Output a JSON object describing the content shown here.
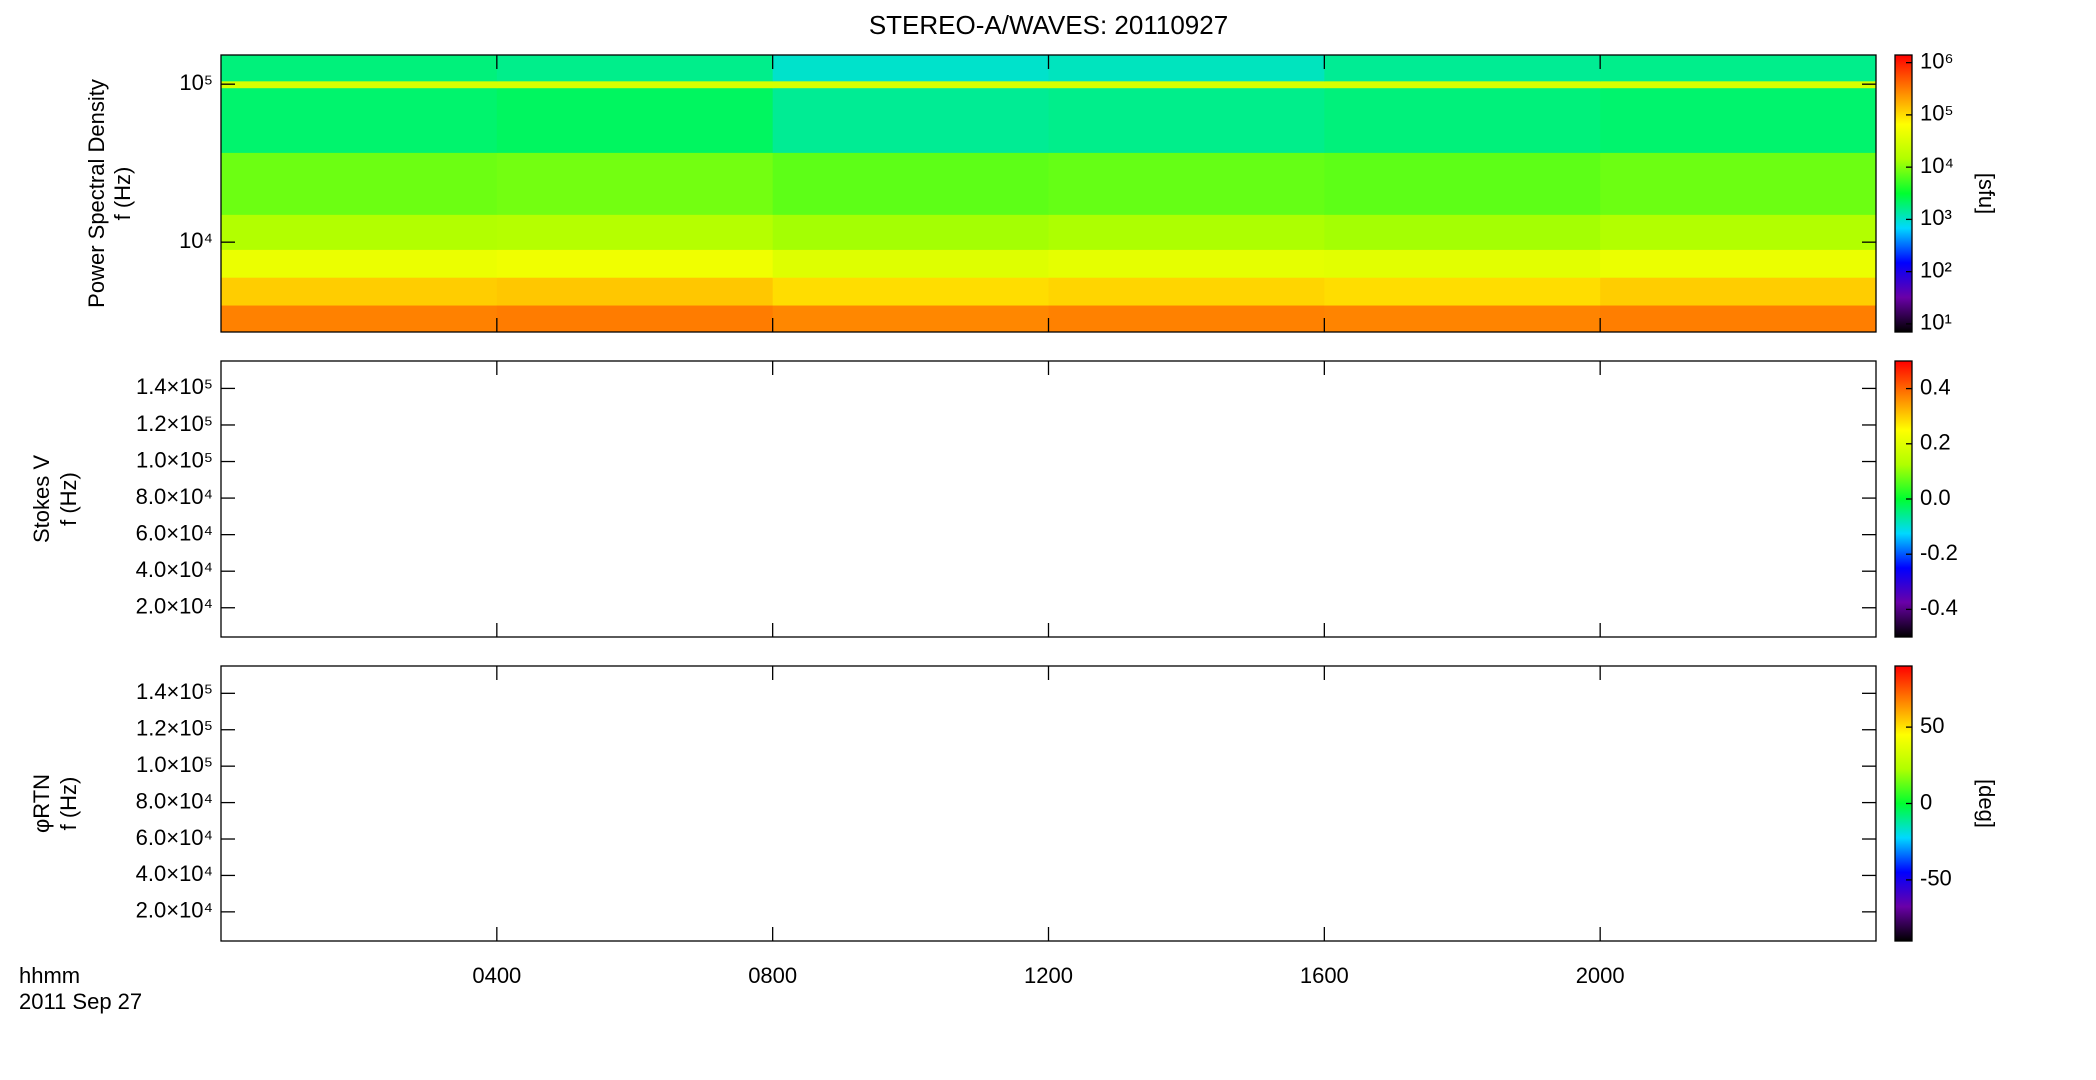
{
  "chart_data": [
    {
      "type": "heatmap",
      "title": "STEREO-A/WAVES: 20110927",
      "ylabel": [
        "Power Spectral Density",
        "f (Hz)"
      ],
      "xlim": [
        0,
        24
      ],
      "xticks": [
        4,
        8,
        12,
        16,
        20
      ],
      "ylim": [
        2700,
        153000
      ],
      "ylog": true,
      "yticks": [
        {
          "value": 10000,
          "label": "10⁴"
        },
        {
          "value": 100000,
          "label": "10⁵"
        }
      ],
      "x_bins": [
        0,
        4,
        8,
        12,
        16,
        20,
        24
      ],
      "y_bins": [
        2700,
        4000,
        6000,
        9000,
        15000,
        37000,
        95000,
        105000,
        153000
      ],
      "z": [
        [
          300000,
          320000,
          280000,
          300000,
          290000,
          310000
        ],
        [
          120000,
          130000,
          100000,
          110000,
          100000,
          120000
        ],
        [
          45000,
          50000,
          35000,
          40000,
          38000,
          45000
        ],
        [
          15000,
          16000,
          13000,
          14000,
          13000,
          15000
        ],
        [
          8000,
          8500,
          7000,
          7500,
          7000,
          8000
        ],
        [
          2000,
          2200,
          1500,
          1600,
          1800,
          2000
        ],
        [
          30000,
          30000,
          30000,
          30000,
          30000,
          30000
        ],
        [
          1800,
          1600,
          1000,
          1100,
          1500,
          1600
        ]
      ],
      "colorscale": [
        "#000000",
        "#6a00a8",
        "#0000ff",
        "#00d8ff",
        "#00ff30",
        "#b0ff00",
        "#ffff00",
        "#ff8000",
        "#ff0000"
      ],
      "colorbar": {
        "label": "[sfu]",
        "log": true,
        "clim": [
          7,
          1400000
        ],
        "ticks": [
          {
            "value": 10,
            "label": "10¹"
          },
          {
            "value": 100,
            "label": "10²"
          },
          {
            "value": 1000,
            "label": "10³"
          },
          {
            "value": 10000,
            "label": "10⁴"
          },
          {
            "value": 100000,
            "label": "10⁵"
          },
          {
            "value": 1000000,
            "label": "10⁶"
          }
        ]
      }
    },
    {
      "type": "heatmap",
      "ylabel": [
        "Stokes V",
        "f (Hz)"
      ],
      "xlim": [
        0,
        24
      ],
      "xticks": [
        4,
        8,
        12,
        16,
        20
      ],
      "ylim": [
        4000,
        155000
      ],
      "yticks": [
        {
          "value": 20000,
          "label": "2.0×10⁴"
        },
        {
          "value": 40000,
          "label": "4.0×10⁴"
        },
        {
          "value": 60000,
          "label": "6.0×10⁴"
        },
        {
          "value": 80000,
          "label": "8.0×10⁴"
        },
        {
          "value": 100000,
          "label": "1.0×10⁵"
        },
        {
          "value": 120000,
          "label": "1.2×10⁵"
        },
        {
          "value": 140000,
          "label": "1.4×10⁵"
        }
      ],
      "colorscale": [
        "#000000",
        "#6a00a8",
        "#0000ff",
        "#00d8ff",
        "#00ff30",
        "#b0ff00",
        "#ffff00",
        "#ff8000",
        "#ff0000"
      ],
      "colorbar": {
        "clim": [
          -0.5,
          0.5
        ],
        "ticks": [
          -0.4,
          -0.2,
          {
            "value": 0,
            "label": "0.0"
          },
          0.2,
          0.4
        ]
      }
    },
    {
      "type": "heatmap",
      "ylabel": [
        "φRTN",
        "f (Hz)"
      ],
      "xlabel": [
        "hhmm",
        "2011 Sep 27"
      ],
      "xlim": [
        0,
        24
      ],
      "xticks": [
        {
          "value": 4,
          "label": "0400"
        },
        {
          "value": 8,
          "label": "0800"
        },
        {
          "value": 12,
          "label": "1200"
        },
        {
          "value": 16,
          "label": "1600"
        },
        {
          "value": 20,
          "label": "2000"
        }
      ],
      "ylim": [
        4000,
        155000
      ],
      "yticks": [
        {
          "value": 20000,
          "label": "2.0×10⁴"
        },
        {
          "value": 40000,
          "label": "4.0×10⁴"
        },
        {
          "value": 60000,
          "label": "6.0×10⁴"
        },
        {
          "value": 80000,
          "label": "8.0×10⁴"
        },
        {
          "value": 100000,
          "label": "1.0×10⁵"
        },
        {
          "value": 120000,
          "label": "1.2×10⁵"
        },
        {
          "value": 140000,
          "label": "1.4×10⁵"
        }
      ],
      "colorscale": [
        "#000000",
        "#6a00a8",
        "#0000ff",
        "#00d8ff",
        "#00ff30",
        "#b0ff00",
        "#ffff00",
        "#ff8000",
        "#ff0000"
      ],
      "colorbar": {
        "label": "[deg]",
        "clim": [
          -90,
          90
        ],
        "ticks": [
          -50,
          0,
          50
        ]
      }
    }
  ]
}
